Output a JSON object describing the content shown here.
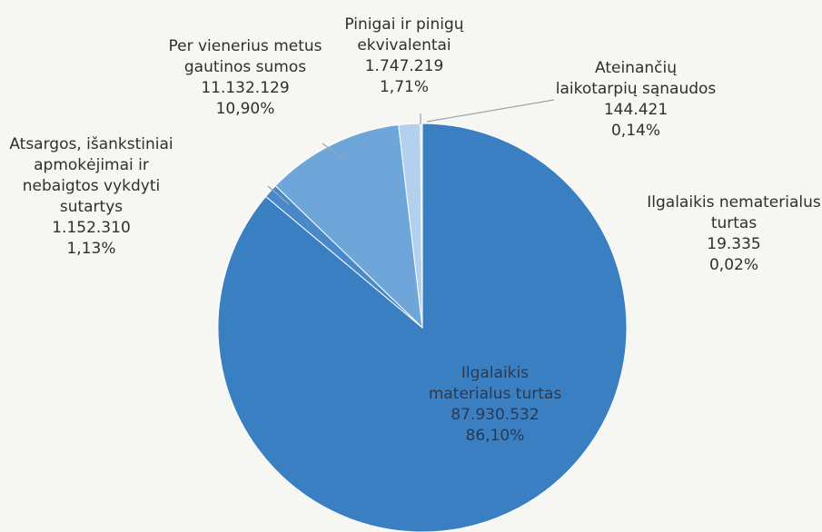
{
  "chart_data": {
    "type": "pie",
    "categories": [
      "Ilgalaikis materialus turtas",
      "Atsargos, išankstiniai apmokėjimai ir nebaigtos vykdyti sutartys",
      "Per vienerius metus gautinos sumos",
      "Pinigai ir pinigų ekvivalentai",
      "Ateinančių laikotarpių sąnaudos",
      "Ilgalaikis nematerialus turtas"
    ],
    "values": [
      87930532,
      1152310,
      11132129,
      1747219,
      144421,
      19335
    ],
    "value_labels": [
      "87.930.532",
      "1.152.310",
      "11.132.129",
      "1.747.219",
      "144.421",
      "19.335"
    ],
    "percent_labels": [
      "86,10%",
      "1,13%",
      "10,90%",
      "1,71%",
      "0,14%",
      "0,02%"
    ],
    "colors": [
      "#3b7fc3",
      "#4a89c9",
      "#6fa6d9",
      "#b3d1ee",
      "#d3e4f4",
      "#e4eef8"
    ]
  }
}
